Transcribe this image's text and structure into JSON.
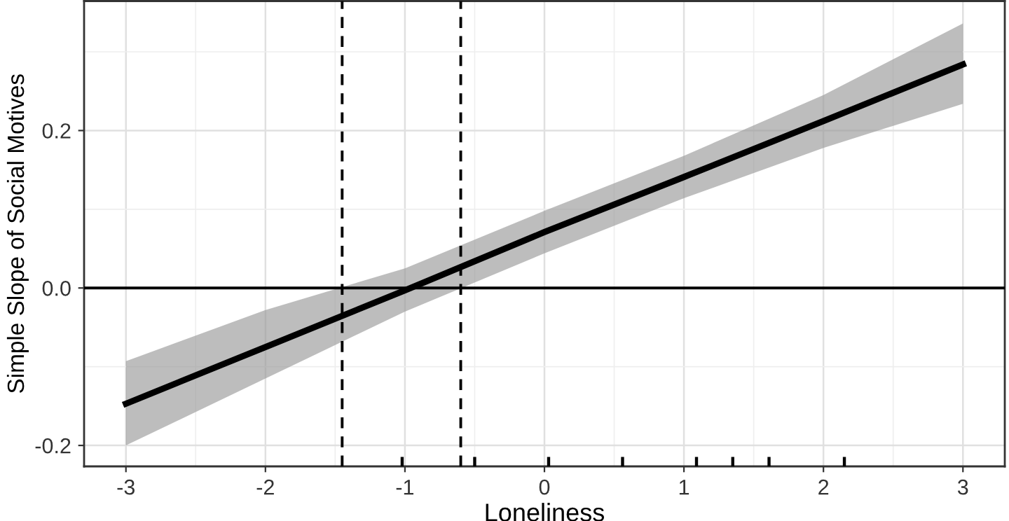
{
  "chart_data": {
    "type": "line",
    "xlabel": "Loneliness",
    "ylabel": "Simple Slope of Social Motives",
    "x": [
      -3,
      -2,
      -1,
      0,
      1,
      2,
      3
    ],
    "series": [
      {
        "color": "#000000",
        "values": [
          -0.147,
          -0.075,
          -0.003,
          0.071,
          0.141,
          0.212,
          0.284
        ],
        "lower": [
          -0.2,
          -0.115,
          -0.03,
          0.044,
          0.114,
          0.178,
          0.234
        ],
        "upper": [
          -0.093,
          -0.028,
          0.025,
          0.098,
          0.168,
          0.245,
          0.336
        ]
      },
      {
        "type": "bar",
        "color": "#000000",
        "x": [
          -1.02,
          -0.5,
          0.03,
          0.56,
          1.09,
          1.35,
          1.61,
          2.15
        ],
        "base": [
          -0.2266,
          -0.2266,
          -0.2266,
          -0.2266,
          -0.2266,
          -0.2266,
          -0.2266,
          -0.2266
        ],
        "values": [
          0.012,
          0.012,
          0.012,
          0.012,
          0.012,
          0.012,
          0.012,
          0.012
        ]
      }
    ],
    "ref_lines": [
      {
        "axis": "y",
        "value": 0,
        "line_style": "solid",
        "color": "#000000"
      },
      {
        "axis": "x",
        "value": -1.45,
        "line_style": "dashed",
        "color": "#000000"
      },
      {
        "axis": "x",
        "value": -0.6,
        "line_style": "dashed",
        "color": "#000000"
      }
    ],
    "xlim": [
      -3.3,
      3.3
    ],
    "ylim": [
      -0.2266,
      0.3645
    ],
    "xticks": [
      -3,
      -2,
      -1,
      0,
      1,
      2,
      3
    ],
    "yticks": [
      {
        "value": -0.2,
        "label": "-0.2"
      },
      {
        "value": 0.0,
        "label": "0.0"
      },
      {
        "value": 0.2,
        "label": "0.2"
      }
    ],
    "grid": true,
    "legend": false,
    "line_style": "solid"
  }
}
